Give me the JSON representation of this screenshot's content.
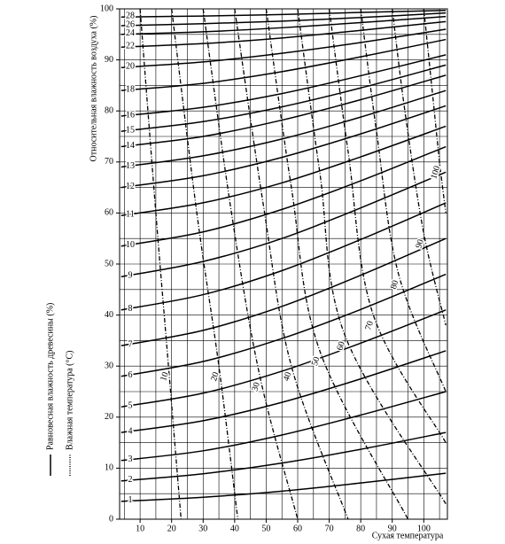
{
  "chart_data": {
    "type": "line",
    "x_title": "Сухая температура",
    "y_title": "Относительная влажность воздуха (%)",
    "xlim": [
      3.5,
      107.5
    ],
    "ylim": [
      0,
      100
    ],
    "xticks": [
      10,
      20,
      30,
      40,
      50,
      60,
      70,
      80,
      90,
      100
    ],
    "yticks": [
      0,
      10,
      20,
      30,
      40,
      50,
      60,
      70,
      80,
      90,
      100
    ],
    "xgrid": [
      5,
      10,
      15,
      20,
      25,
      30,
      35,
      40,
      45,
      50,
      55,
      60,
      65,
      70,
      75,
      80,
      85,
      90,
      95,
      100,
      105
    ],
    "ygrid": [
      5,
      10,
      15,
      20,
      25,
      30,
      35,
      40,
      45,
      50,
      55,
      60,
      65,
      70,
      75,
      80,
      85,
      90,
      95
    ],
    "legend": [
      {
        "label": "Равновесная влажность древесины (%)",
        "line_style": "solid"
      },
      {
        "label": "Влажная температура (°C)",
        "line_style": "dotted"
      }
    ],
    "x": [
      4,
      30,
      55,
      80,
      107
    ],
    "series": [
      {
        "name": "1",
        "line_style": "solid",
        "values": [
          3.5,
          4.3,
          5.5,
          7.1,
          9
        ]
      },
      {
        "name": "2",
        "line_style": "solid",
        "values": [
          7.5,
          8.9,
          11,
          13.7,
          17
        ]
      },
      {
        "name": "3",
        "line_style": "solid",
        "values": [
          11.5,
          13.4,
          16.5,
          20.4,
          25
        ]
      },
      {
        "name": "4",
        "line_style": "solid",
        "values": [
          17,
          19.3,
          22.9,
          27.5,
          33
        ]
      },
      {
        "name": "5",
        "line_style": "solid",
        "values": [
          22,
          24.7,
          29,
          34.5,
          41
        ]
      },
      {
        "name": "6",
        "line_style": "solid",
        "values": [
          28,
          30.9,
          35.4,
          41.1,
          48
        ]
      },
      {
        "name": "7",
        "line_style": "solid",
        "values": [
          34,
          37,
          41.7,
          47.8,
          55
        ]
      },
      {
        "name": "8",
        "line_style": "solid",
        "values": [
          41,
          44,
          48.7,
          54.8,
          62
        ]
      },
      {
        "name": "9",
        "line_style": "solid",
        "values": [
          47.5,
          50.5,
          55,
          61,
          68
        ]
      },
      {
        "name": "10",
        "line_style": "solid",
        "values": [
          53.5,
          56.3,
          60.7,
          66.3,
          73
        ]
      },
      {
        "name": "11",
        "line_style": "solid",
        "values": [
          59.5,
          62,
          65.9,
          71,
          77
        ]
      },
      {
        "name": "12",
        "line_style": "solid",
        "values": [
          65,
          67.3,
          70.9,
          75.5,
          81
        ]
      },
      {
        "name": "13",
        "line_style": "solid",
        "values": [
          69,
          71.2,
          74.5,
          78.8,
          84
        ]
      },
      {
        "name": "14",
        "line_style": "solid",
        "values": [
          73,
          75,
          78.2,
          82.2,
          87
        ]
      },
      {
        "name": "15",
        "line_style": "solid",
        "values": [
          76,
          77.9,
          80.8,
          84.5,
          89
        ]
      },
      {
        "name": "16",
        "line_style": "solid",
        "values": [
          79,
          80.7,
          83.4,
          86.9,
          91
        ]
      },
      {
        "name": "18",
        "line_style": "solid",
        "values": [
          84,
          85.4,
          87.7,
          90.6,
          94
        ]
      },
      {
        "name": "20",
        "line_style": "solid",
        "values": [
          88.5,
          89.6,
          91.3,
          93.4,
          96
        ]
      },
      {
        "name": "22",
        "line_style": "solid",
        "values": [
          92.5,
          93.2,
          94.3,
          95.8,
          97.5
        ]
      },
      {
        "name": "24",
        "line_style": "solid",
        "values": [
          95,
          95.5,
          96.3,
          97.3,
          98.5
        ]
      },
      {
        "name": "26",
        "line_style": "solid",
        "values": [
          96.7,
          97.1,
          97.6,
          98.3,
          99.2
        ]
      },
      {
        "name": "28",
        "line_style": "solid",
        "values": [
          98.4,
          98.6,
          98.9,
          99.3,
          99.7
        ]
      },
      {
        "name": "10",
        "line_style": "dotted",
        "x": [
          10,
          15,
          19,
          23
        ],
        "values": [
          100,
          60,
          30,
          0
        ]
      },
      {
        "name": "20",
        "line_style": "dotted",
        "x": [
          20,
          28,
          35,
          41
        ],
        "values": [
          100,
          60,
          30,
          0
        ]
      },
      {
        "name": "30",
        "line_style": "dotted",
        "x": [
          30,
          39,
          48,
          60
        ],
        "values": [
          100,
          60,
          28,
          0
        ]
      },
      {
        "name": "40",
        "line_style": "dotted",
        "x": [
          40,
          49,
          58,
          76
        ],
        "values": [
          100,
          62,
          30,
          0
        ]
      },
      {
        "name": "50",
        "line_style": "dotted",
        "x": [
          50,
          58,
          67,
          95
        ],
        "values": [
          100,
          65,
          33,
          0
        ]
      },
      {
        "name": "60",
        "line_style": "dotted",
        "x": [
          60,
          67,
          75,
          107
        ],
        "values": [
          100,
          68,
          36,
          3
        ]
      },
      {
        "name": "70",
        "line_style": "dotted",
        "x": [
          70,
          76,
          84,
          107
        ],
        "values": [
          100,
          72,
          40,
          15
        ]
      },
      {
        "name": "80",
        "line_style": "dotted",
        "x": [
          80,
          85,
          92,
          107
        ],
        "values": [
          100,
          76,
          48,
          25
        ]
      },
      {
        "name": "90",
        "line_style": "dotted",
        "x": [
          90,
          94,
          100,
          107
        ],
        "values": [
          100,
          80,
          56,
          38
        ]
      },
      {
        "name": "100",
        "line_style": "dotted",
        "x": [
          100,
          103,
          105,
          107
        ],
        "values": [
          100,
          82,
          70,
          60
        ]
      }
    ]
  }
}
